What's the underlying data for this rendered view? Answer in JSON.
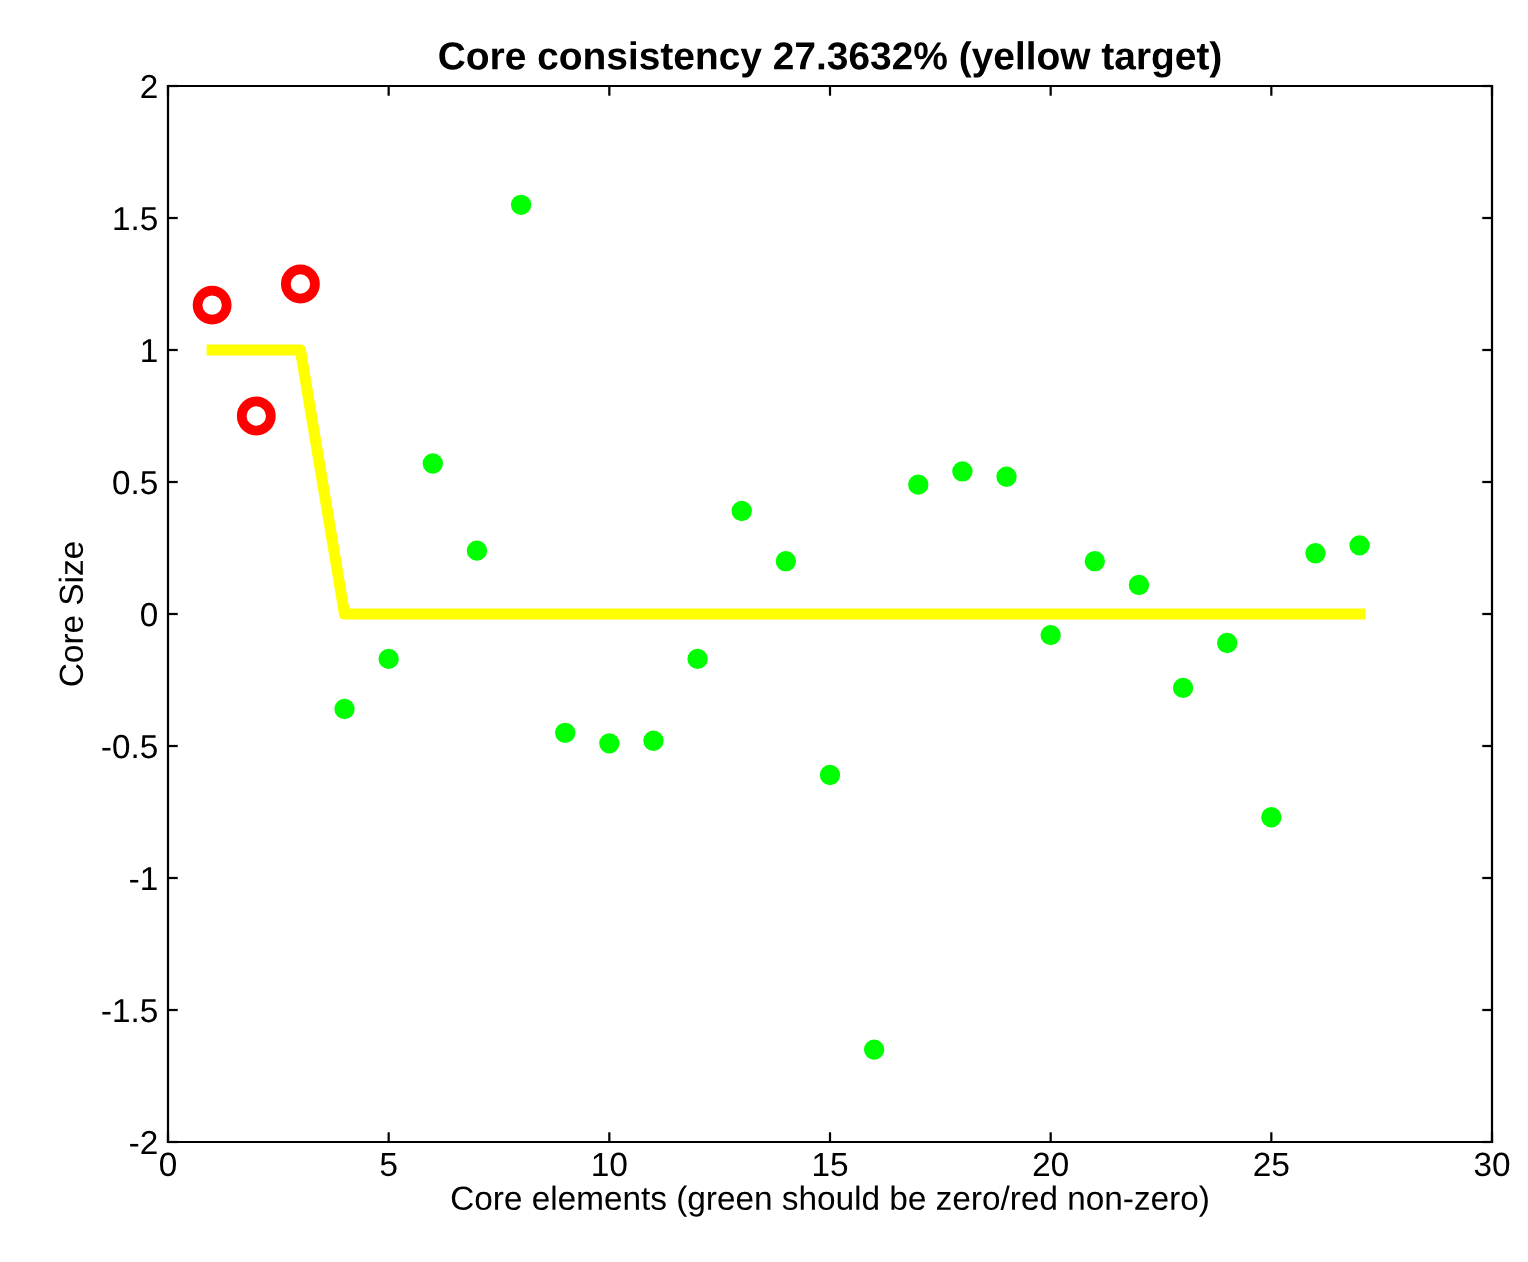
{
  "chart_data": {
    "type": "scatter",
    "title": "Core consistency 27.3632% (yellow target)",
    "xlabel": "Core elements (green should be zero/red non-zero)",
    "ylabel": "Core Size",
    "xlim": [
      0,
      30
    ],
    "xticks": [
      0,
      5,
      10,
      15,
      20,
      25,
      30
    ],
    "ylim": [
      -2,
      2
    ],
    "yticks": [
      -2,
      -1.5,
      -1,
      -0.5,
      0,
      0.5,
      1,
      1.5,
      2
    ],
    "grid": false,
    "legend": false,
    "series": [
      {
        "type": "line",
        "color": "#ffff00",
        "marker": "none",
        "line_style": "solid",
        "x": [
          1,
          2,
          3,
          4,
          5,
          6,
          7,
          8,
          9,
          10,
          11,
          12,
          13,
          14,
          15,
          16,
          17,
          18,
          19,
          20,
          21,
          22,
          23,
          24,
          25,
          26,
          27
        ],
        "values": [
          1,
          1,
          1,
          0,
          0,
          0,
          0,
          0,
          0,
          0,
          0,
          0,
          0,
          0,
          0,
          0,
          0,
          0,
          0,
          0,
          0,
          0,
          0,
          0,
          0,
          0,
          0
        ]
      },
      {
        "color": "#ff0000",
        "marker": "circle",
        "x": [
          1,
          2,
          3
        ],
        "values": [
          1.17,
          0.75,
          1.25
        ]
      },
      {
        "color": "#00ff00",
        "marker": "circle",
        "x": [
          4,
          5,
          6,
          7,
          8,
          9,
          10,
          11,
          12,
          13,
          14,
          15,
          16,
          17,
          18,
          19,
          20,
          21,
          22,
          23,
          24,
          25,
          26,
          27
        ],
        "values": [
          -0.36,
          -0.17,
          0.57,
          0.24,
          1.55,
          -0.45,
          -0.49,
          -0.48,
          -0.17,
          0.39,
          0.2,
          -0.61,
          -1.65,
          0.49,
          0.54,
          0.52,
          -0.08,
          0.2,
          0.11,
          -0.28,
          -0.11,
          -0.77,
          0.23,
          0.26
        ]
      }
    ]
  }
}
